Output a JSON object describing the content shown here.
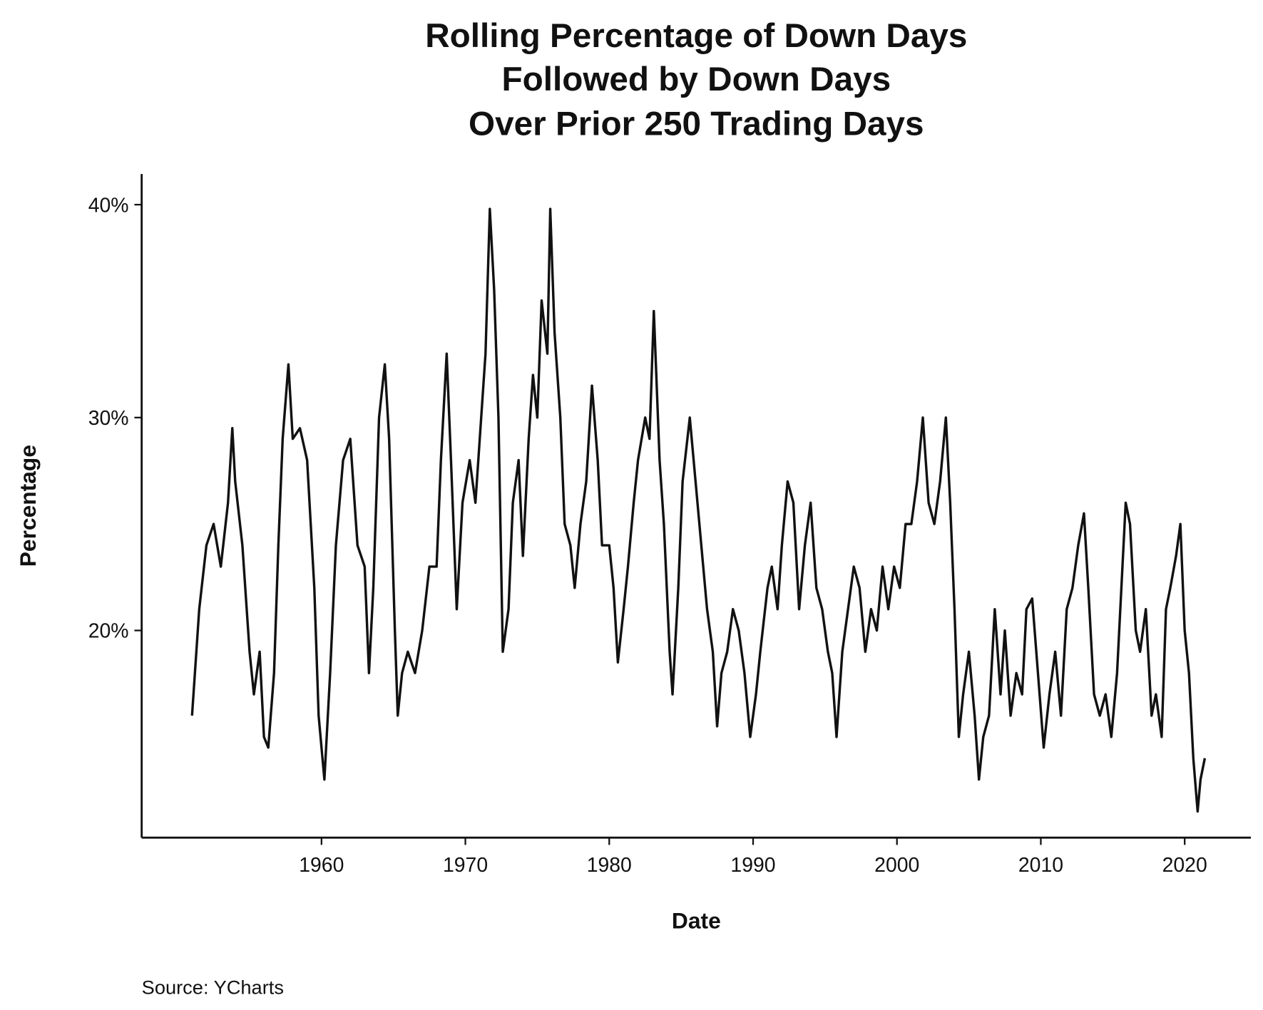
{
  "chart_data": {
    "type": "line",
    "title": [
      "Rolling Percentage of Down Days",
      "Followed by Down Days",
      "Over Prior 250 Trading Days"
    ],
    "x_label": "Date",
    "y_label": "Percentage",
    "source": "Source:  YCharts",
    "xlim": [
      1947.5,
      2024.6
    ],
    "xticks": [
      1960,
      1970,
      1980,
      1990,
      2000,
      2010,
      2020
    ],
    "ylim": [
      10.27,
      41.44
    ],
    "yticks": [
      {
        "value": 20,
        "label": "20%"
      },
      {
        "value": 30,
        "label": "30%"
      },
      {
        "value": 40,
        "label": "40%"
      }
    ],
    "grid": false,
    "series": [
      {
        "name": "Percentage",
        "color": "#111111",
        "x": [
          1951.0,
          1951.5,
          1952,
          1952.5,
          1953,
          1953.5,
          1953.8,
          1954,
          1954.5,
          1955,
          1955.3,
          1955.7,
          1956,
          1956.3,
          1956.7,
          1957,
          1957.3,
          1957.7,
          1958,
          1958.5,
          1959,
          1959.5,
          1959.8,
          1960.2,
          1960.6,
          1961,
          1961.5,
          1962,
          1962.5,
          1963,
          1963.3,
          1963.6,
          1964,
          1964.4,
          1964.7,
          1965.1,
          1965.3,
          1965.6,
          1966,
          1966.5,
          1967,
          1967.5,
          1968,
          1968.3,
          1968.7,
          1969,
          1969.4,
          1969.8,
          1970.3,
          1970.7,
          1971,
          1971.4,
          1971.7,
          1972,
          1972.3,
          1972.6,
          1973,
          1973.3,
          1973.7,
          1974,
          1974.4,
          1974.7,
          1975,
          1975.3,
          1975.7,
          1975.9,
          1976.2,
          1976.6,
          1976.9,
          1977.3,
          1977.6,
          1978,
          1978.4,
          1978.8,
          1979.2,
          1979.5,
          1980,
          1980.3,
          1980.6,
          1981,
          1981.3,
          1981.7,
          1982,
          1982.5,
          1982.8,
          1983.1,
          1983.5,
          1983.8,
          1984.2,
          1984.4,
          1984.8,
          1985.1,
          1985.6,
          1986,
          1986.4,
          1986.8,
          1987.2,
          1987.5,
          1987.8,
          1988.2,
          1988.6,
          1989,
          1989.4,
          1989.8,
          1990.2,
          1990.5,
          1991,
          1991.3,
          1991.7,
          1992,
          1992.4,
          1992.8,
          1993.2,
          1993.6,
          1994,
          1994.4,
          1994.8,
          1995.2,
          1995.5,
          1995.8,
          1996.2,
          1996.6,
          1997,
          1997.4,
          1997.8,
          1998.2,
          1998.6,
          1999,
          1999.4,
          1999.8,
          2000.2,
          2000.6,
          2001,
          2001.4,
          2001.8,
          2002.2,
          2002.6,
          2003,
          2003.4,
          2003.7,
          2004,
          2004.3,
          2004.6,
          2005,
          2005.4,
          2005.7,
          2006,
          2006.4,
          2006.8,
          2007.2,
          2007.5,
          2007.9,
          2008.3,
          2008.7,
          2009,
          2009.4,
          2009.8,
          2010.2,
          2010.6,
          2011,
          2011.4,
          2011.8,
          2012.2,
          2012.6,
          2013,
          2013.3,
          2013.7,
          2014.1,
          2014.5,
          2014.9,
          2015.3,
          2015.6,
          2015.9,
          2016.2,
          2016.6,
          2016.9,
          2017.3,
          2017.7,
          2018,
          2018.4,
          2018.7,
          2019,
          2019.4,
          2019.7,
          2020,
          2020.3,
          2020.6,
          2020.9,
          2021.1,
          2021.4
        ],
        "values": [
          16,
          21,
          24,
          25,
          23,
          26,
          29.5,
          27,
          24,
          19,
          17,
          19,
          15,
          14.5,
          18,
          24,
          29,
          32.5,
          29,
          29.5,
          28,
          22,
          16,
          13,
          18,
          24,
          28,
          29,
          24,
          23,
          18,
          22,
          30,
          32.5,
          29,
          20,
          16,
          18,
          19,
          18,
          20,
          23,
          23,
          28,
          33,
          28,
          21,
          26,
          28,
          26,
          29,
          33,
          39.8,
          36,
          30,
          19,
          21,
          26,
          28,
          23.5,
          29,
          32,
          30,
          35.5,
          33,
          39.8,
          34,
          30,
          25,
          24,
          22,
          25,
          27,
          31.5,
          28,
          24,
          24,
          22,
          18.5,
          21,
          23,
          26,
          28,
          30,
          29,
          35,
          28,
          25,
          19,
          17,
          22,
          27,
          30,
          27,
          24,
          21,
          19,
          15.5,
          18,
          19,
          21,
          20,
          18,
          15,
          17,
          19,
          22,
          23,
          21,
          24,
          27,
          26,
          21,
          24,
          26,
          22,
          21,
          19,
          18,
          15,
          19,
          21,
          23,
          22,
          19,
          21,
          20,
          23,
          21,
          23,
          22,
          25,
          25,
          27,
          30,
          26,
          25,
          27,
          30,
          26,
          21,
          15,
          17,
          19,
          16,
          13,
          15,
          16,
          21,
          17,
          20,
          16,
          18,
          17,
          21,
          21.5,
          18,
          14.5,
          17,
          19,
          16,
          21,
          22,
          24,
          25.5,
          22,
          17,
          16,
          17,
          15,
          18,
          22,
          26,
          25,
          20,
          19,
          21,
          16,
          17,
          15,
          21,
          22,
          23.5,
          25,
          20,
          18,
          14,
          11.5,
          13,
          14
        ]
      }
    ]
  }
}
